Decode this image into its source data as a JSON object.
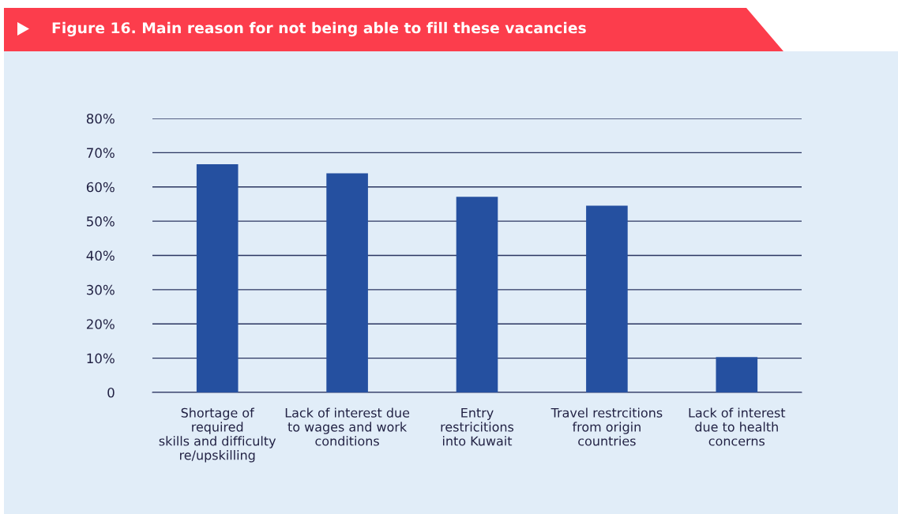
{
  "chart_data": {
    "type": "bar",
    "title": "Figure 16. Main reason for not being able to fill these vacancies",
    "categories": [
      "Shortage of\nrequired\nskills and difficulty\nre/upskilling",
      "Lack of interest due\nto wages and work\nconditions",
      "Entry\nrestricitions\ninto Kuwait",
      "Travel restrcitions\nfrom origin\ncountries",
      "Lack of interest\ndue to health\nconcerns"
    ],
    "values": [
      66.6,
      64.0,
      57.1,
      54.5,
      10.3
    ],
    "color": "#2550a0",
    "ylim": [
      0,
      80
    ],
    "yticks": [
      {
        "value": 0,
        "label": "0"
      },
      {
        "value": 10,
        "label": "10%"
      },
      {
        "value": 20,
        "label": "20%"
      },
      {
        "value": 30,
        "label": "30%"
      },
      {
        "value": 40,
        "label": "40%"
      },
      {
        "value": 50,
        "label": "50%"
      },
      {
        "value": 60,
        "label": "60%"
      },
      {
        "value": 70,
        "label": "70%"
      },
      {
        "value": 80,
        "label": "80%"
      }
    ],
    "grid": "y"
  }
}
